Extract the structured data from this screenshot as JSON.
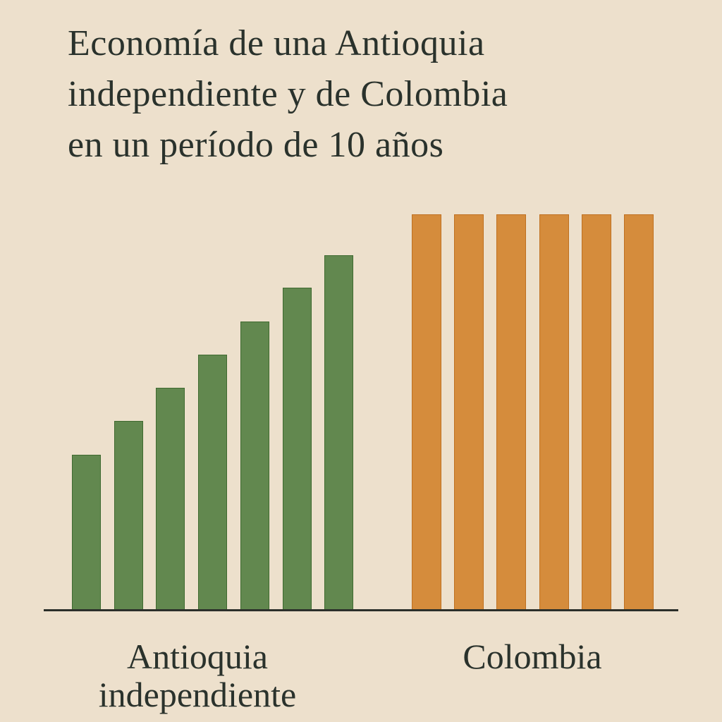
{
  "title_lines": [
    "Economía de una Antioquia",
    "independiente y de Colombia",
    "en un período de 10 años"
  ],
  "categories": {
    "antioquia": [
      "Antioquia",
      "independiente"
    ],
    "colombia": [
      "Colombia"
    ]
  },
  "colors": {
    "background": "#ede0cc",
    "antioquia": "#62884f",
    "colombia": "#d58c3c",
    "axis": "#2b2f2a",
    "text": "#2a322c"
  },
  "chart_data": {
    "type": "bar",
    "title": "Economía de una Antioquia independiente y de Colombia en un período de 10 años",
    "xlabel": "",
    "ylabel": "",
    "grid": false,
    "legend": null,
    "groups": [
      "Antioquia independiente",
      "Colombia"
    ],
    "series": [
      {
        "name": "Antioquia independiente",
        "color": "#62884f",
        "values": [
          220,
          268,
          315,
          362,
          409,
          457,
          503
        ]
      },
      {
        "name": "Colombia",
        "color": "#d58c3c",
        "values": [
          561,
          561,
          561,
          561,
          561,
          561
        ]
      }
    ],
    "units": "relative bar height (no axis ticks shown)",
    "ylim": [
      0,
      600
    ]
  }
}
